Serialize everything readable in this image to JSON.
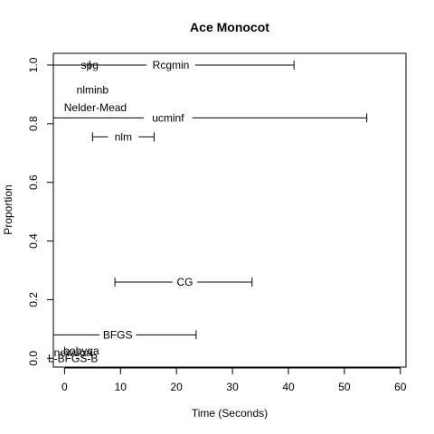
{
  "chart_data": {
    "type": "scatter",
    "title": "Ace Monocot",
    "xlabel": "Time (Seconds)",
    "ylabel": "Proportion",
    "xlim": [
      -2,
      61
    ],
    "ylim": [
      -0.03,
      1.04
    ],
    "x_ticks": [
      0,
      10,
      20,
      30,
      40,
      50,
      60
    ],
    "x_tick_labels": [
      "0",
      "10",
      "20",
      "30",
      "40",
      "50",
      "60"
    ],
    "y_ticks": [
      0.0,
      0.2,
      0.4,
      0.6,
      0.8,
      1.0
    ],
    "y_tick_labels": [
      "0.0",
      "0.2",
      "0.4",
      "0.6",
      "0.8",
      "1.0"
    ],
    "grid": false,
    "legend": "none",
    "points": [
      {
        "name": "spg",
        "x": 4.5,
        "y": 1.0,
        "x_low": -2.0,
        "x_high": 4.5
      },
      {
        "name": "Rcgmin",
        "x": 19.0,
        "y": 1.0,
        "x_low": -2.0,
        "x_high": 41.0
      },
      {
        "name": "nlminb",
        "x": 5.0,
        "y": 0.915
      },
      {
        "name": "Nelder-Mead",
        "x": 5.5,
        "y": 0.855
      },
      {
        "name": "ucminf",
        "x": 18.5,
        "y": 0.82,
        "x_low": -2.0,
        "x_high": 54.0
      },
      {
        "name": "nlm",
        "x": 10.5,
        "y": 0.755,
        "x_low": 5.0,
        "x_high": 16.0
      },
      {
        "name": "CG",
        "x": 21.5,
        "y": 0.26,
        "x_low": 9.0,
        "x_high": 33.5
      },
      {
        "name": "BFGS",
        "x": 9.5,
        "y": 0.08,
        "x_low": -2.0,
        "x_high": 23.5
      },
      {
        "name": "bobyqa",
        "x": 3.0,
        "y": 0.025
      },
      {
        "name": "newuoa",
        "x": 1.5,
        "y": 0.02
      },
      {
        "name": "L-BFGS-B",
        "x": 1.5,
        "y": 0.0
      }
    ]
  }
}
